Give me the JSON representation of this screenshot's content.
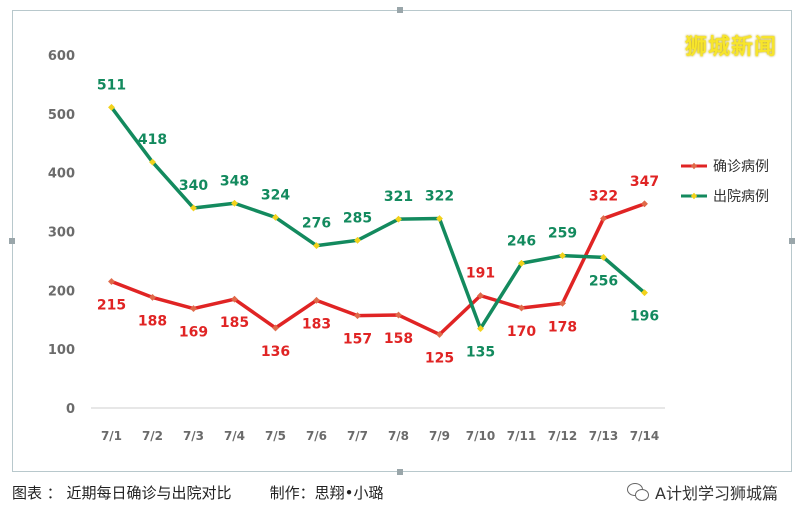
{
  "watermark": "狮城新闻",
  "caption": "图表 ： 近期每日确诊与出院对比        制作：思翔•小璐",
  "source": {
    "label": "A计划学习狮城篇",
    "icon": "wechat-icon"
  },
  "chart_data": {
    "type": "line",
    "categories": [
      "7/1",
      "7/2",
      "7/3",
      "7/4",
      "7/5",
      "7/6",
      "7/7",
      "7/8",
      "7/9",
      "7/10",
      "7/11",
      "7/12",
      "7/13",
      "7/14"
    ],
    "ylim": [
      0,
      600
    ],
    "yticks": [
      0,
      100,
      200,
      300,
      400,
      500,
      600
    ],
    "grid": false,
    "legend_position": "right",
    "title": "",
    "xlabel": "",
    "ylabel": "",
    "series": [
      {
        "name": "确诊病例",
        "color": "#e02424",
        "marker_color": "#e06a4a",
        "values": [
          215,
          188,
          169,
          185,
          136,
          183,
          157,
          158,
          125,
          191,
          170,
          178,
          322,
          347
        ]
      },
      {
        "name": "出院病例",
        "color": "#138a5e",
        "marker_color": "#f2d21c",
        "values": [
          511,
          418,
          340,
          348,
          324,
          276,
          285,
          321,
          322,
          135,
          246,
          259,
          256,
          196
        ]
      }
    ]
  }
}
